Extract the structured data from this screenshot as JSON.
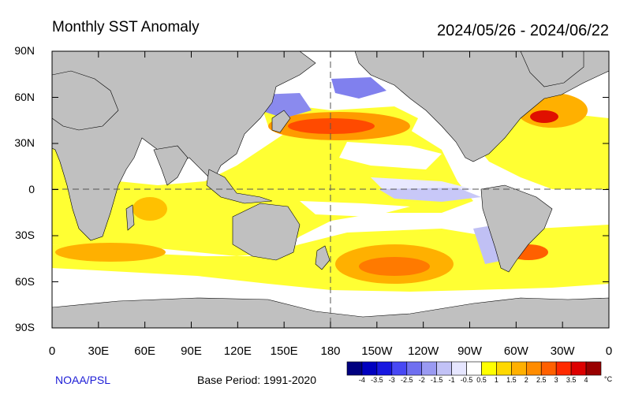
{
  "title": "Monthly SST Anomaly",
  "date_range": "2024/05/26 - 2024/06/22",
  "credit": "NOAA/PSL",
  "base_period": "Base Period: 1991-2020",
  "lat_labels": [
    "90N",
    "60N",
    "30N",
    "0",
    "30S",
    "60S",
    "90S"
  ],
  "lon_labels": [
    "0",
    "30E",
    "60E",
    "90E",
    "120E",
    "150E",
    "180",
    "150W",
    "120W",
    "90W",
    "60W",
    "30W",
    "0"
  ],
  "colorbar": {
    "unit": "°C",
    "labels": [
      "-4",
      "-3.5",
      "-3",
      "-2.5",
      "-2",
      "-1.5",
      "-1",
      "-0.5",
      "0.5",
      "1",
      "1.5",
      "2",
      "2.5",
      "3",
      "3.5",
      "4"
    ],
    "colors": [
      "#00007f",
      "#0000bf",
      "#1818e0",
      "#4848f4",
      "#7070f0",
      "#9a9af2",
      "#c2c2f6",
      "#e6e6ff",
      "#ffffff",
      "#ffff00",
      "#ffd800",
      "#ffb000",
      "#ff8c00",
      "#ff6000",
      "#ff2a00",
      "#dd0000",
      "#990000"
    ]
  },
  "colors": {
    "land": "#c0c0c0",
    "ocean_warm": "#ffff33",
    "ocean_cool": "#ffffff",
    "credit": "#1c1cd6"
  }
}
